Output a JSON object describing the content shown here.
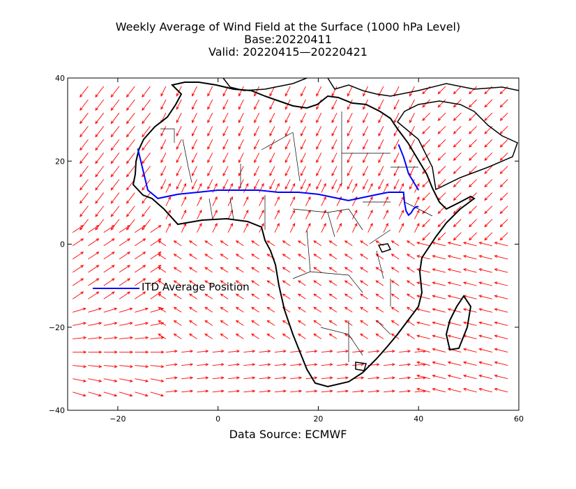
{
  "title": {
    "line1": "Weekly Average of Wind Field at the Surface (1000 hPa Level)",
    "line2": "Base:20220411",
    "line3": "Valid: 20220415—20220421"
  },
  "source": "Data Source: ECMWF",
  "legend": {
    "label": "ITD Average Position"
  },
  "axes": {
    "lon_range": [
      -30,
      60
    ],
    "lat_range": [
      -40,
      40
    ],
    "x_ticks": [
      "−20",
      "0",
      "20",
      "40",
      "60"
    ],
    "y_ticks": [
      "40",
      "20",
      "0",
      "−20",
      "−40"
    ]
  },
  "colors": {
    "wind_vectors": "#ff0000",
    "itd_line": "#0000ff",
    "coastline": "#000000",
    "borders": "#000000"
  },
  "itd_position": {
    "lon": [
      -16,
      -14,
      -12,
      -8,
      -4,
      0,
      4,
      8,
      12,
      16,
      20,
      24,
      26,
      28,
      30,
      32,
      34,
      37,
      37.2,
      37.5,
      38,
      38.5,
      39,
      39.5,
      40
    ],
    "lat": [
      23,
      13,
      11,
      12,
      12.5,
      13,
      13,
      13,
      12.5,
      12.5,
      12,
      11,
      10.5,
      11,
      11.5,
      12,
      12.5,
      12.5,
      10,
      8,
      7,
      7.5,
      8.5,
      9,
      9
    ]
  },
  "itd_branch": {
    "lon": [
      36,
      37,
      37.5,
      38,
      38.5,
      39,
      40
    ],
    "lat": [
      24,
      21,
      19,
      17,
      16,
      15,
      13
    ]
  }
}
